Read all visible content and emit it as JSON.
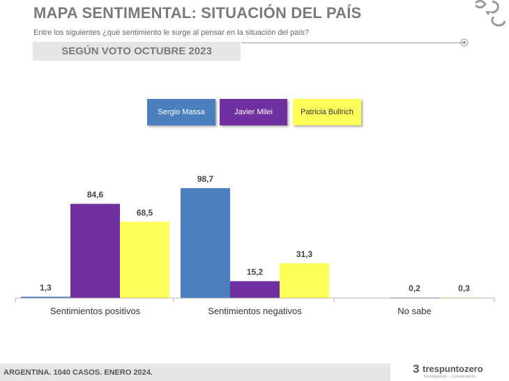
{
  "header": {
    "title": "MAPA SENTIMENTAL: SITUACIÓN DEL PAÍS",
    "subtitle": "Entre los siguientes ¿qué sentimiento le surge al pensar en la situación del país?",
    "section": "SEGÚN VOTO OCTUBRE 2023"
  },
  "footer": {
    "note": "ARGENTINA. 1040 CASOS. ENERO 2024.",
    "brand_digit": "3",
    "brand_name": "trespuntozero",
    "brand_tagline": "Investigación – Comunicación"
  },
  "legend": [
    {
      "label": "Sergio Massa",
      "color": "#4b7fbf",
      "text_color": "#ffffff"
    },
    {
      "label": "Javier Milei",
      "color": "#7030a0",
      "text_color": "#ffffff"
    },
    {
      "label": "Patricia Bullrich",
      "color": "#ffff5a",
      "text_color": "#333333"
    }
  ],
  "chart_data": {
    "type": "bar",
    "categories": [
      "Sentimientos positivos",
      "Sentimientos negativos",
      "No sabe"
    ],
    "series": [
      {
        "name": "Sergio Massa",
        "color": "#4b7fbf",
        "values": [
          1.3,
          98.7,
          null
        ],
        "labels": [
          "1,3",
          "98,7",
          ""
        ]
      },
      {
        "name": "Javier Milei",
        "color": "#7030a0",
        "values": [
          84.6,
          15.2,
          0.2
        ],
        "labels": [
          "84,6",
          "15,2",
          "0,2"
        ]
      },
      {
        "name": "Patricia Bullrich",
        "color": "#ffff5a",
        "values": [
          68.5,
          31.3,
          0.3
        ],
        "labels": [
          "68,5",
          "31,3",
          "0,3"
        ]
      }
    ],
    "ylim": [
      0,
      100
    ],
    "grid": false,
    "legend_position": "top-center"
  }
}
